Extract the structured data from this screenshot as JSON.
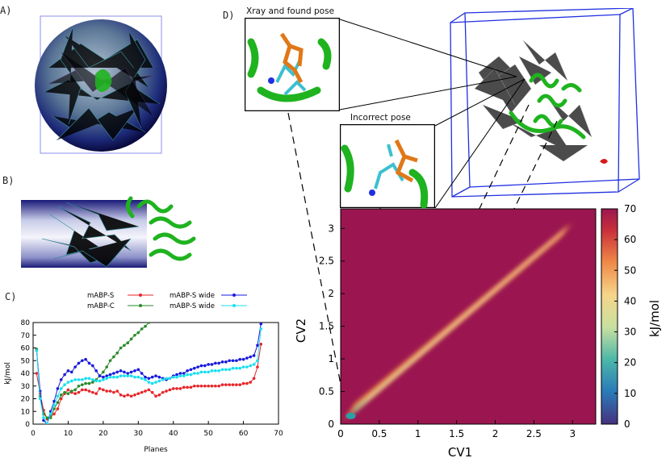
{
  "panels": {
    "a": {
      "label": "A)"
    },
    "b": {
      "label": "B)"
    },
    "c": {
      "label": "C)"
    },
    "d": {
      "label": "D)"
    }
  },
  "insets": {
    "xray": {
      "caption": "Xray and found pose"
    },
    "incorrect": {
      "caption": "Incorrect pose"
    }
  },
  "colors": {
    "mABP_S": "#e8262a",
    "mABP_C": "#2a8a2a",
    "mABP_S_wide_blue": "#1a1adc",
    "mABP_S_wide_cyan": "#18e0f0",
    "protein": "#1fb31f",
    "ligand_orange": "#e07818",
    "ligand_cyan": "#3cc0d0",
    "box_blue": "#2030e0",
    "fes_background": "#9b1650"
  },
  "chart_data": [
    {
      "type": "line",
      "xlabel": "Planes",
      "ylabel": "kJ/mol",
      "xlim": [
        0,
        70
      ],
      "ylim": [
        0,
        80
      ],
      "xticks": [
        "0",
        "10",
        "20",
        "30",
        "40",
        "50",
        "60",
        "70"
      ],
      "yticks": [
        "0",
        "10",
        "20",
        "30",
        "40",
        "50",
        "60",
        "70",
        "80"
      ],
      "series": [
        {
          "name": "mABP-S",
          "x": [
            1,
            2,
            3,
            4,
            5,
            6,
            7,
            8,
            9,
            10,
            11,
            12,
            13,
            14,
            15,
            16,
            17,
            18,
            19,
            20,
            21,
            22,
            23,
            24,
            25,
            26,
            27,
            28,
            29,
            30,
            31,
            32,
            33,
            34,
            35,
            36,
            37,
            38,
            39,
            40,
            41,
            42,
            43,
            44,
            45,
            46,
            47,
            48,
            49,
            50,
            51,
            52,
            53,
            54,
            55,
            56,
            57,
            58,
            59,
            60,
            61,
            62,
            63,
            64,
            65
          ],
          "y": [
            40,
            24,
            11,
            4,
            6,
            8,
            12,
            20,
            24,
            27,
            25,
            24,
            25,
            27,
            27,
            26,
            25,
            24,
            28,
            27,
            26,
            26,
            25,
            26,
            23,
            22,
            23,
            22,
            23,
            24,
            25,
            26,
            27,
            25,
            22,
            23,
            25,
            26,
            27,
            28,
            28,
            28,
            29,
            29,
            29,
            30,
            30,
            30,
            30,
            30,
            30,
            30,
            30,
            31,
            31,
            31,
            31,
            31,
            31,
            32,
            32,
            33,
            36,
            45,
            63
          ]
        },
        {
          "name": "mABP-C",
          "x": [
            1,
            2,
            3,
            4,
            5,
            6,
            7,
            8,
            9,
            10,
            11,
            12,
            13,
            14,
            15,
            16,
            17,
            18,
            19,
            20,
            21,
            22,
            23,
            24,
            25,
            26,
            27,
            28,
            29,
            30,
            31,
            32,
            33
          ],
          "y": [
            59,
            22,
            8,
            5,
            5,
            12,
            17,
            23,
            25,
            24,
            26,
            27,
            30,
            31,
            32,
            32,
            33,
            35,
            38,
            41,
            45,
            50,
            53,
            56,
            60,
            62,
            64,
            67,
            70,
            72,
            75,
            77,
            80
          ]
        },
        {
          "name": "mABP-S wide",
          "x": [
            1,
            2,
            3,
            4,
            5,
            6,
            7,
            8,
            9,
            10,
            11,
            12,
            13,
            14,
            15,
            16,
            17,
            18,
            19,
            20,
            21,
            22,
            23,
            24,
            25,
            26,
            27,
            28,
            29,
            30,
            31,
            32,
            33,
            34,
            35,
            36,
            37,
            38,
            39,
            40,
            41,
            42,
            43,
            44,
            45,
            46,
            47,
            48,
            49,
            50,
            51,
            52,
            53,
            54,
            55,
            56,
            57,
            58,
            59,
            60,
            61,
            62,
            63,
            64,
            65
          ],
          "y": [
            58,
            26,
            3,
            0,
            10,
            18,
            28,
            35,
            39,
            42,
            41,
            45,
            48,
            50,
            51,
            48,
            46,
            42,
            38,
            37,
            38,
            39,
            40,
            41,
            42,
            41,
            40,
            41,
            42,
            43,
            40,
            37,
            36,
            37,
            38,
            37,
            36,
            35,
            36,
            38,
            39,
            40,
            40,
            42,
            43,
            44,
            45,
            46,
            46,
            47,
            47,
            48,
            48,
            49,
            49,
            50,
            50,
            50,
            51,
            51,
            52,
            53,
            54,
            62,
            79
          ]
        },
        {
          "name": "mABP-S wide",
          "x": [
            1,
            2,
            3,
            4,
            5,
            6,
            7,
            8,
            9,
            10,
            11,
            12,
            13,
            14,
            15,
            16,
            17,
            18,
            19,
            20,
            21,
            22,
            23,
            24,
            25,
            26,
            27,
            28,
            29,
            30,
            31,
            32,
            33,
            34,
            35,
            36,
            37,
            38,
            39,
            40,
            41,
            42,
            43,
            44,
            45,
            46,
            47,
            48,
            49,
            50,
            51,
            52,
            53,
            54,
            55,
            56,
            57,
            58,
            59,
            60,
            61,
            62,
            63,
            64,
            65
          ],
          "y": [
            58,
            20,
            5,
            0,
            8,
            15,
            22,
            28,
            31,
            33,
            34,
            35,
            35,
            35,
            36,
            36,
            35,
            34,
            34,
            35,
            36,
            37,
            37,
            37,
            38,
            38,
            38,
            38,
            37,
            37,
            36,
            35,
            33,
            32,
            33,
            34,
            35,
            36,
            36,
            37,
            37,
            38,
            38,
            39,
            39,
            40,
            40,
            41,
            41,
            41,
            42,
            42,
            42,
            43,
            43,
            43,
            44,
            44,
            44,
            45,
            45,
            46,
            47,
            50,
            75
          ]
        }
      ],
      "legend": {
        "placement": "top",
        "entries": [
          "mABP-S",
          "mABP-S wide",
          "mABP-C",
          "mABP-S wide"
        ]
      }
    },
    {
      "type": "heatmap",
      "xlabel": "CV1",
      "ylabel": "CV2",
      "xlim": [
        0,
        3.3
      ],
      "ylim": [
        0,
        3.3
      ],
      "xticks": [
        "0",
        "0.5",
        "1",
        "1.5",
        "2",
        "2.5",
        "3"
      ],
      "yticks": [
        "0",
        "0.5",
        "1",
        "1.5",
        "2",
        "2.5",
        "3"
      ],
      "colorbar": {
        "label": "kJ/mol",
        "range": [
          0,
          70
        ],
        "ticks": [
          "0",
          "10",
          "20",
          "30",
          "40",
          "50",
          "60",
          "70"
        ]
      },
      "low_energy_region": {
        "from": [
          0.1,
          0.1
        ],
        "to": [
          2.95,
          3.05
        ]
      }
    }
  ]
}
